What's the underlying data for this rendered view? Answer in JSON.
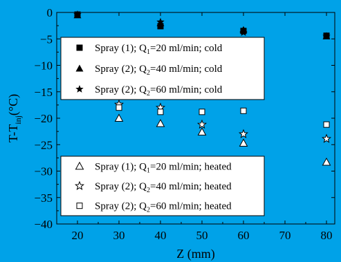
{
  "chart_data": {
    "type": "scatter",
    "xlabel": "Z (mm)",
    "ylabel_main": "T-T",
    "ylabel_sub": "inj",
    "ylabel_unit": "(°C)",
    "xlim": [
      15,
      82
    ],
    "ylim": [
      -40,
      0
    ],
    "xticks": [
      20,
      30,
      40,
      50,
      60,
      70,
      80
    ],
    "yticks": [
      0,
      -5,
      -10,
      -15,
      -20,
      -25,
      -30,
      -35,
      -40
    ],
    "grid": false,
    "series": [
      {
        "name": "Spray (1); Q1=20 ml/min; cold",
        "label_parts": {
          "pre": "Spray (1); Q",
          "sub": "1",
          "post": "=20 ml/min; cold"
        },
        "marker": "square-filled",
        "x": [
          20,
          40,
          60,
          80
        ],
        "y": [
          -0.4,
          -2.6,
          -3.5,
          -4.4
        ]
      },
      {
        "name": "Spray (2); Q2=40 ml/min; cold",
        "label_parts": {
          "pre": "Spray (2); Q",
          "sub": "2",
          "post": "=40 ml/min; cold"
        },
        "marker": "triangle-filled",
        "x": [
          20,
          40,
          60,
          80
        ],
        "y": [
          -0.5,
          -2.0,
          -3.3,
          -4.5
        ]
      },
      {
        "name": "Spray (2); Q2=60 ml/min; cold",
        "label_parts": {
          "pre": "Spray (2); Q",
          "sub": "2",
          "post": "=60 ml/min; cold"
        },
        "marker": "star-filled",
        "x": [
          20,
          40,
          60,
          80
        ],
        "y": [
          -0.4,
          -1.8,
          -3.8,
          -4.5
        ]
      },
      {
        "name": "Spray (1); Q1=20 ml/min; heated",
        "label_parts": {
          "pre": "Spray (1); Q",
          "sub": "1",
          "post": "=20 ml/min; heated"
        },
        "marker": "triangle-open",
        "x": [
          30,
          40,
          50,
          60,
          80
        ],
        "y": [
          -20.0,
          -21.0,
          -22.6,
          -24.7,
          -28.3
        ]
      },
      {
        "name": "Spray (2); Q2=40 ml/min; heated",
        "label_parts": {
          "pre": "Spray (2); Q",
          "sub": "2",
          "post": "=40 ml/min; heated"
        },
        "marker": "star-open",
        "x": [
          30,
          40,
          50,
          60,
          80
        ],
        "y": [
          -17.4,
          -18.0,
          -21.2,
          -23.0,
          -23.9
        ]
      },
      {
        "name": "Spray (2); Q2=60 ml/min; heated",
        "label_parts": {
          "pre": "Spray (2); Q",
          "sub": "2",
          "post": "=60 ml/min; heated"
        },
        "marker": "square-open",
        "x": [
          30,
          40,
          50,
          60,
          80
        ],
        "y": [
          -18.0,
          -18.8,
          -18.8,
          -18.6,
          -21.2
        ]
      }
    ],
    "legends": [
      {
        "placement": "upper-center",
        "series": [
          0,
          1,
          2
        ]
      },
      {
        "placement": "lower-center",
        "series": [
          3,
          4,
          5
        ]
      }
    ]
  },
  "colors": {
    "background": "#00a2e8",
    "legend_background": "#ffffff",
    "ink": "#000000"
  }
}
